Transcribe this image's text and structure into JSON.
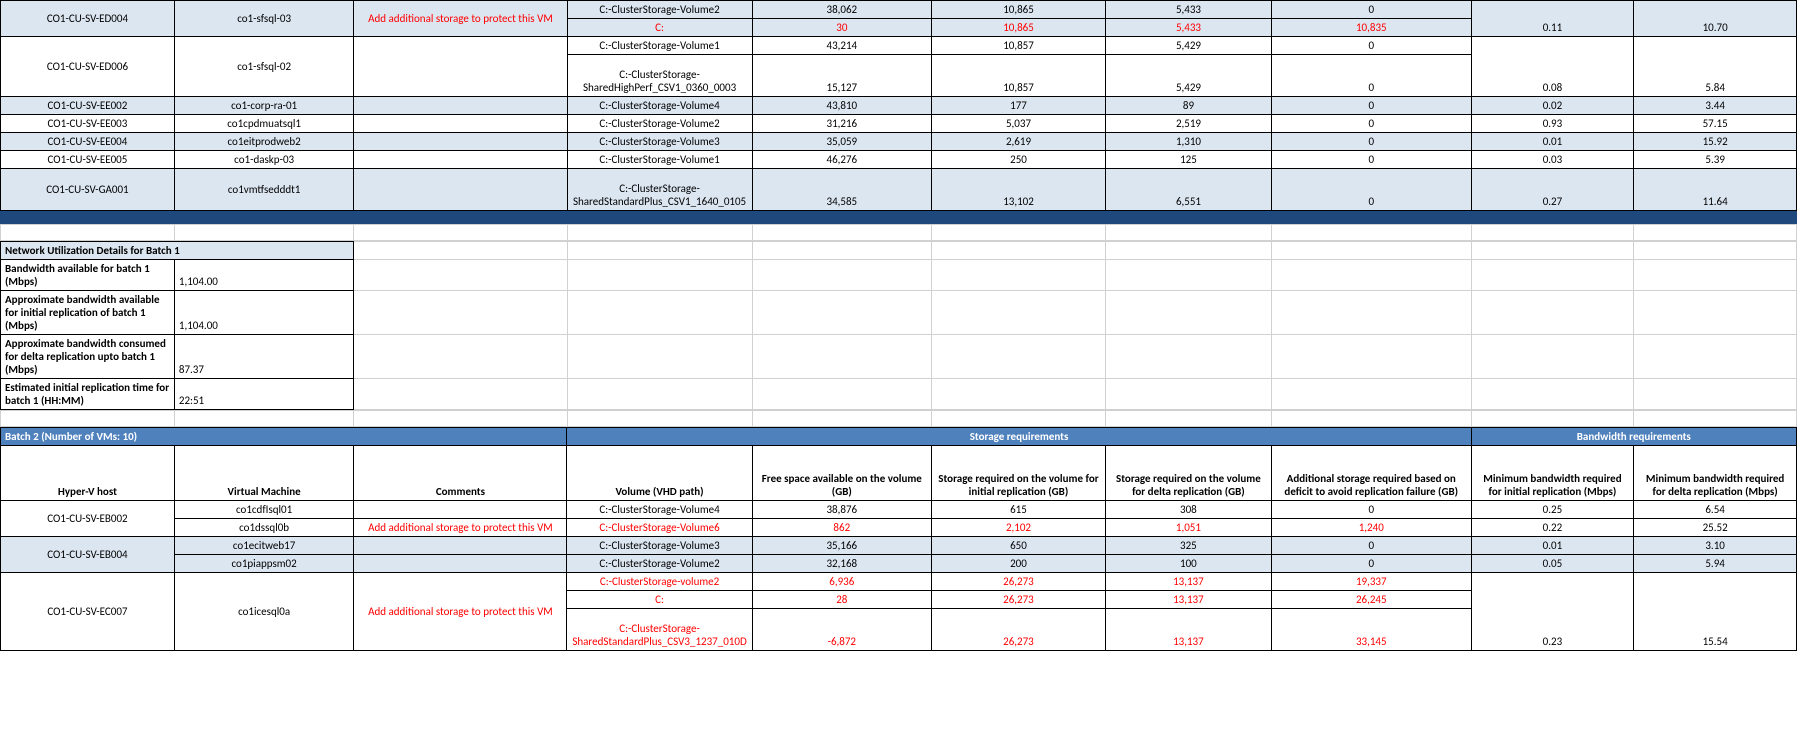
{
  "colors": {
    "shade_bg": "#dce6f1",
    "dark_band": "#1f497d",
    "section_hdr_bg": "#4f81bd",
    "section_hdr_fg": "#ffffff",
    "alert_fg": "#ff0000",
    "grid_border": "#d0d0d0",
    "cell_border": "#000000"
  },
  "topRows": [
    {
      "host": "CO1-CU-SV-ED004",
      "vm": "co1-sfsql-03",
      "comment": "Add additional storage to protect this VM",
      "vol": "C:-ClusterStorage-Volume2",
      "free": "38,062",
      "sreq_init": "10,865",
      "sreq_delta": "5,433",
      "addl": "0",
      "bw_init": "0.11",
      "bw_delta": "10.70",
      "shade": true,
      "red": false,
      "rowspan_host": 2,
      "rowspan_vm": 2,
      "rowspan_comment": 2,
      "rowspan_bw": 2
    },
    {
      "vol": "C:",
      "free": "30",
      "sreq_init": "10,865",
      "sreq_delta": "5,433",
      "addl": "10,835",
      "shade": true,
      "red": true,
      "sub": true
    },
    {
      "host": "CO1-CU-SV-ED006",
      "vm": "co1-sfsql-02",
      "comment": "",
      "vol": "C:-ClusterStorage-Volume1",
      "free": "43,214",
      "sreq_init": "10,857",
      "sreq_delta": "5,429",
      "addl": "0",
      "bw_init": "0.08",
      "bw_delta": "5.84",
      "shade": false,
      "red": false,
      "rowspan_host": 2,
      "rowspan_vm": 2,
      "rowspan_comment": 2,
      "rowspan_bw": 2
    },
    {
      "vol": "C:-ClusterStorage-SharedHighPerf_CSV1_0360_0003",
      "free": "15,127",
      "sreq_init": "10,857",
      "sreq_delta": "5,429",
      "addl": "0",
      "shade": false,
      "red": false,
      "sub": true,
      "tall": true
    },
    {
      "host": "CO1-CU-SV-EE002",
      "vm": "co1-corp-ra-01",
      "comment": "",
      "vol": "C:-ClusterStorage-Volume4",
      "free": "43,810",
      "sreq_init": "177",
      "sreq_delta": "89",
      "addl": "0",
      "bw_init": "0.02",
      "bw_delta": "3.44",
      "shade": true,
      "red": false
    },
    {
      "host": "CO1-CU-SV-EE003",
      "vm": "co1cpdmuatsql1",
      "comment": "",
      "vol": "C:-ClusterStorage-Volume2",
      "free": "31,216",
      "sreq_init": "5,037",
      "sreq_delta": "2,519",
      "addl": "0",
      "bw_init": "0.93",
      "bw_delta": "57.15",
      "shade": false,
      "red": false
    },
    {
      "host": "CO1-CU-SV-EE004",
      "vm": "co1eitprodweb2",
      "comment": "",
      "vol": "C:-ClusterStorage-Volume3",
      "free": "35,059",
      "sreq_init": "2,619",
      "sreq_delta": "1,310",
      "addl": "0",
      "bw_init": "0.01",
      "bw_delta": "15.92",
      "shade": true,
      "red": false
    },
    {
      "host": "CO1-CU-SV-EE005",
      "vm": "co1-daskp-03",
      "comment": "",
      "vol": "C:-ClusterStorage-Volume1",
      "free": "46,276",
      "sreq_init": "250",
      "sreq_delta": "125",
      "addl": "0",
      "bw_init": "0.03",
      "bw_delta": "5.39",
      "shade": false,
      "red": false
    },
    {
      "host": "CO1-CU-SV-GA001",
      "vm": "co1vmtfsedddt1",
      "comment": "",
      "vol": "C:-ClusterStorage-SharedStandardPlus_CSV1_1640_0105",
      "free": "34,585",
      "sreq_init": "13,102",
      "sreq_delta": "6,551",
      "addl": "0",
      "bw_init": "0.27",
      "bw_delta": "11.64",
      "shade": true,
      "red": false,
      "tall": true
    }
  ],
  "netSection": {
    "title": "Network Utilization Details for Batch 1",
    "rows": [
      {
        "label": "Bandwidth available for batch 1 (Mbps)",
        "value": "1,104.00"
      },
      {
        "label": "Approximate bandwidth available for initial replication of batch 1 (Mbps)",
        "value": "1,104.00"
      },
      {
        "label": "Approximate bandwidth consumed for delta replication upto batch 1 (Mbps)",
        "value": "87.37"
      },
      {
        "label": "Estimated initial replication time for batch 1 (HH:MM)",
        "value": "22:51"
      }
    ]
  },
  "batch2": {
    "title": "Batch 2 (Number of VMs: 10)",
    "storage_hdr": "Storage requirements",
    "bw_hdr": "Bandwidth requirements",
    "cols": {
      "host": "Hyper-V host",
      "vm": "Virtual Machine",
      "comments": "Comments",
      "vol": "Volume\n(VHD path)",
      "free": "Free space available on the volume (GB)",
      "sreq_init": "Storage required on the volume for initial replication (GB)",
      "sreq_delta": "Storage required on the volume for delta replication (GB)",
      "addl": "Additional storage required based on deficit to avoid replication failure (GB)",
      "bw_init": "Minimum bandwidth required for initial replication (Mbps)",
      "bw_delta": "Minimum bandwidth required for delta replication (Mbps)"
    },
    "rows": [
      {
        "host": "CO1-CU-SV-EB002",
        "vm": "co1cdfIsql01",
        "comment": "",
        "vol": "C:-ClusterStorage-Volume4",
        "free": "38,876",
        "sreq_init": "615",
        "sreq_delta": "308",
        "addl": "0",
        "bw_init": "0.25",
        "bw_delta": "6.54",
        "shade": false,
        "red": false,
        "rowspan_host": 2
      },
      {
        "vm": "co1dssql0b",
        "comment": "Add additional storage to protect this VM",
        "vol": "C:-ClusterStorage-Volume6",
        "free": "862",
        "sreq_init": "2,102",
        "sreq_delta": "1,051",
        "addl": "1,240",
        "bw_init": "0.22",
        "bw_delta": "25.52",
        "shade": false,
        "red": true,
        "sub_host": true
      },
      {
        "host": "CO1-CU-SV-EB004",
        "vm": "co1ecitweb17",
        "comment": "",
        "vol": "C:-ClusterStorage-Volume3",
        "free": "35,166",
        "sreq_init": "650",
        "sreq_delta": "325",
        "addl": "0",
        "bw_init": "0.01",
        "bw_delta": "3.10",
        "shade": true,
        "red": false,
        "rowspan_host": 2
      },
      {
        "vm": "co1piappsm02",
        "comment": "",
        "vol": "C:-ClusterStorage-Volume2",
        "free": "32,168",
        "sreq_init": "200",
        "sreq_delta": "100",
        "addl": "0",
        "bw_init": "0.05",
        "bw_delta": "5.94",
        "shade": true,
        "red": false,
        "sub_host": true
      },
      {
        "host": "CO1-CU-SV-EC007",
        "vm": "co1icesql0a",
        "comment": "Add additional storage to protect this VM",
        "vol": "C:-ClusterStorage-volume2",
        "free": "6,936",
        "sreq_init": "26,273",
        "sreq_delta": "13,137",
        "addl": "19,337",
        "bw_init": "0.23",
        "bw_delta": "15.54",
        "shade": false,
        "red": true,
        "rowspan_host": 3,
        "rowspan_vm": 3,
        "rowspan_comment": 3,
        "rowspan_bw": 3
      },
      {
        "vol": "C:",
        "free": "28",
        "sreq_init": "26,273",
        "sreq_delta": "13,137",
        "addl": "26,245",
        "shade": false,
        "red": true,
        "sub": true
      },
      {
        "vol": "C:-ClusterStorage-SharedStandardPlus_CSV3_1237_010D",
        "free": "-6,872",
        "sreq_init": "26,273",
        "sreq_delta": "13,137",
        "addl": "33,145",
        "shade": false,
        "red": true,
        "sub": true,
        "tall": true
      }
    ]
  }
}
